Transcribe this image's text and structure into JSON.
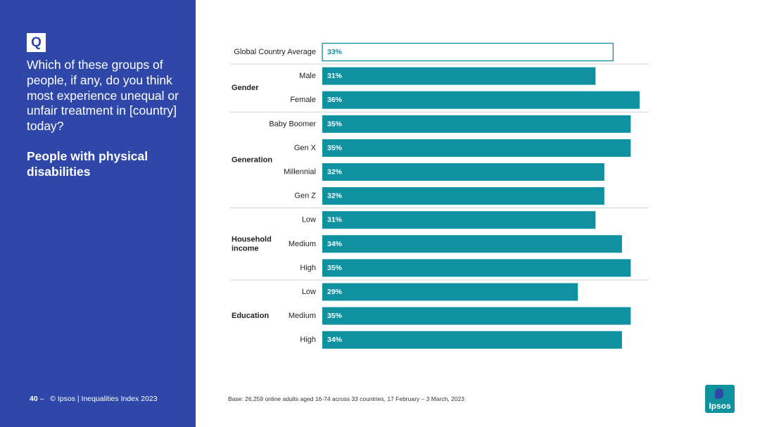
{
  "panel": {
    "q_badge": "Q",
    "question": "Which of these groups of people, if any, do you think most experience unequal or unfair treatment in [country] today?",
    "topic": "People with physical disabilities"
  },
  "footer": {
    "page_number": "40",
    "dash": "–",
    "source": "© Ipsos | Inequalities Index 2023",
    "base": "Base: 26,259 online adults aged 16-74 across 33 countries, 17 February – 3 March, 2023"
  },
  "logo": {
    "text": "Ipsos"
  },
  "colors": {
    "panel_bg": "#2e47a8",
    "bar": "#0f91a0",
    "average_outline": "#0f91a0",
    "separator": "#d0d0d0"
  },
  "chart_data": {
    "type": "bar",
    "orientation": "horizontal",
    "unit": "%",
    "xlim": [
      0,
      40
    ],
    "average": {
      "label": "Global Country Average",
      "value": 33
    },
    "groups": [
      {
        "name": "Gender",
        "rows": [
          {
            "label": "Male",
            "value": 31
          },
          {
            "label": "Female",
            "value": 36
          }
        ]
      },
      {
        "name": "Generation",
        "rows": [
          {
            "label": "Baby Boomer",
            "value": 35
          },
          {
            "label": "Gen X",
            "value": 35
          },
          {
            "label": "Millennial",
            "value": 32
          },
          {
            "label": "Gen Z",
            "value": 32
          }
        ]
      },
      {
        "name": "Household income",
        "name_lines": [
          "Household",
          "income"
        ],
        "rows": [
          {
            "label": "Low",
            "value": 31
          },
          {
            "label": "Medium",
            "value": 34
          },
          {
            "label": "High",
            "value": 35
          }
        ]
      },
      {
        "name": "Education",
        "rows": [
          {
            "label": "Low",
            "value": 29
          },
          {
            "label": "Medium",
            "value": 35
          },
          {
            "label": "High",
            "value": 34
          }
        ]
      }
    ]
  }
}
